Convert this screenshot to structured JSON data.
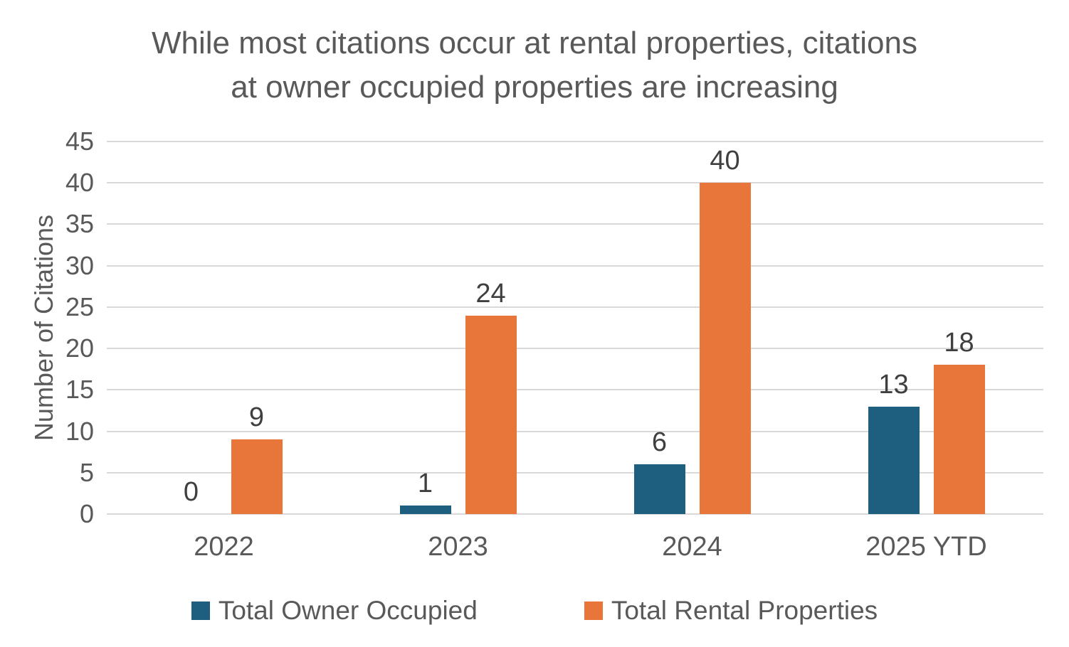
{
  "title": {
    "lines": [
      "While most citations occur at rental properties, citations",
      "at owner occupied properties are increasing"
    ]
  },
  "chart_data": {
    "type": "bar",
    "title": "While most citations occur at rental properties, citations at owner occupied properties are increasing",
    "categories": [
      "2022",
      "2023",
      "2024",
      "2025 YTD"
    ],
    "series": [
      {
        "name": "Total Owner Occupied",
        "color": "#1E5E7F",
        "values": [
          0,
          1,
          6,
          13
        ]
      },
      {
        "name": "Total Rental Properties",
        "color": "#E8763B",
        "values": [
          9,
          24,
          40,
          18
        ]
      }
    ],
    "xlabel": "",
    "ylabel": "Number of Citations",
    "ylim": [
      0,
      45
    ],
    "yticks": [
      0,
      5,
      10,
      15,
      20,
      25,
      30,
      35,
      40,
      45
    ],
    "grid": true,
    "data_labels": true,
    "legend_position": "bottom"
  },
  "colors": {
    "title_text": "#595959",
    "axis_text": "#595959",
    "data_label_text": "#3F3F3F",
    "gridline": "#D9D9D9",
    "background": "#FFFFFF",
    "series_owner": "#1E5E7F",
    "series_rental": "#E8763B"
  }
}
